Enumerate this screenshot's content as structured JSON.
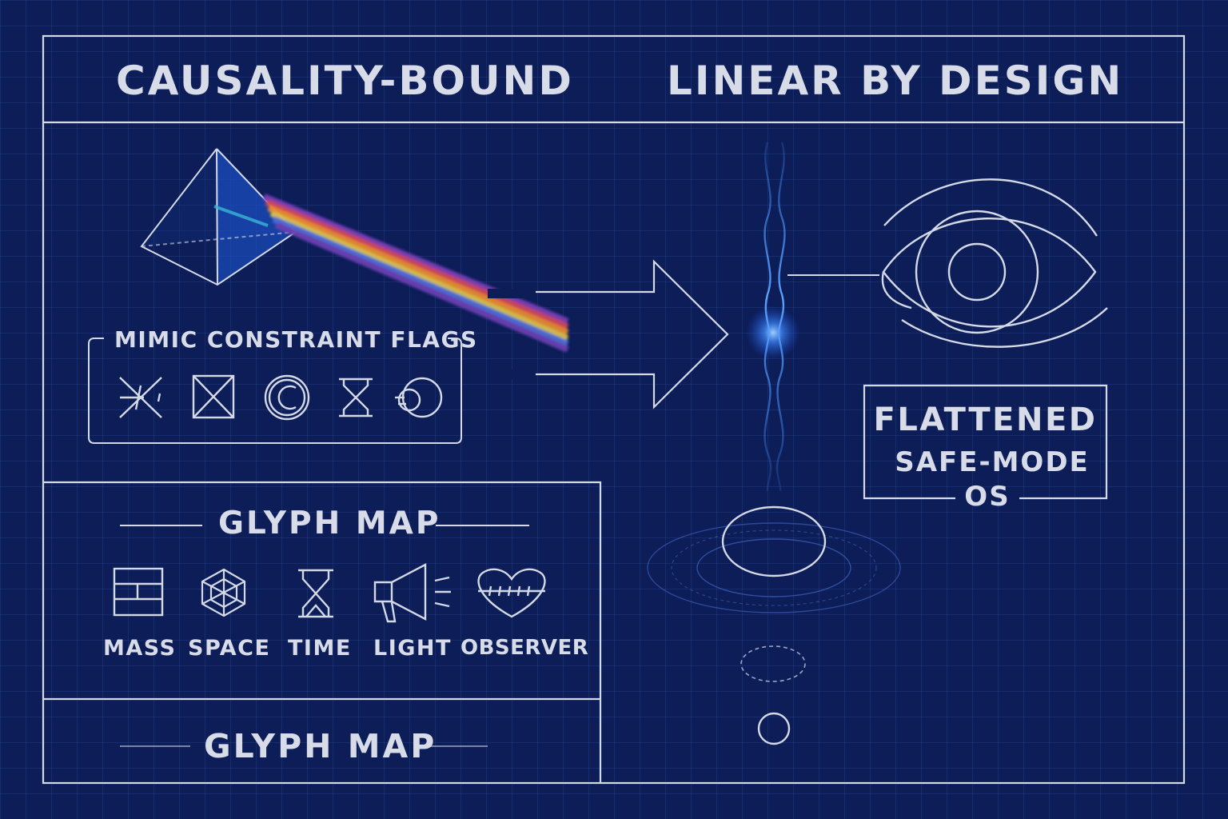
{
  "header": {
    "left_title": "CAUSALITY-BOUND",
    "right_title": "LINEAR BY DESIGN"
  },
  "flags_panel": {
    "title": "MIMIC CONSTRAINT FLAGS",
    "icons": [
      "crossed-x-icon",
      "boxed-x-icon",
      "copyright-icon",
      "hourglass-icon",
      "knot-icon"
    ]
  },
  "glyph_map": {
    "title": "GLYPH MAP",
    "items": [
      {
        "label": "MASS",
        "icon": "brick-wall-icon"
      },
      {
        "label": "SPACE",
        "icon": "web-net-icon"
      },
      {
        "label": "TIME",
        "icon": "hourglass-icon"
      },
      {
        "label": "LIGHT",
        "icon": "megaphone-icon"
      },
      {
        "label": "OBSERVER",
        "icon": "stitched-heart-icon"
      }
    ]
  },
  "footer": {
    "title": "GLYPH MAP"
  },
  "status_box": {
    "line1": "FLATTENED",
    "line2": "SAFE-MODE",
    "line3": "OS"
  },
  "colors": {
    "background": "#0c1d58",
    "line": "#d4d9e6",
    "wave_glow": "#3f8cff",
    "spectrum": [
      "#7a3fb5",
      "#d2475a",
      "#e8892e",
      "#d9c24a",
      "#4a6fd8",
      "#6a3fb0"
    ]
  }
}
